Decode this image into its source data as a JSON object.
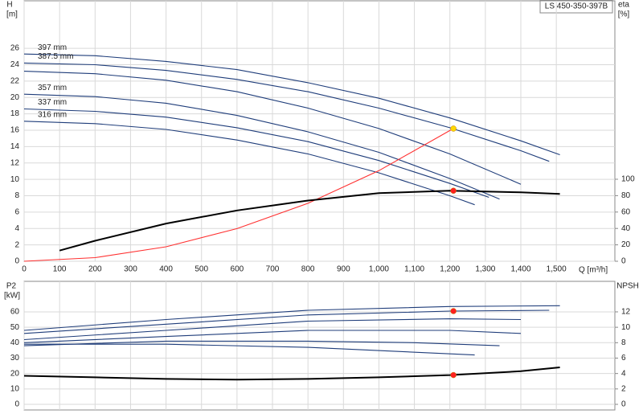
{
  "chart_data": [
    {
      "type": "line",
      "title": "LS 450-350-397B",
      "ylabel": "H",
      "yunit": "[m]",
      "y2label": "eta",
      "y2unit": "[%]",
      "xlabel": "Q [m³/h]",
      "xlim": [
        0,
        1665
      ],
      "xticks": [
        0,
        100,
        200,
        300,
        400,
        500,
        600,
        700,
        800,
        900,
        {
          "value": 1000,
          "label": "1,000"
        },
        {
          "value": 1100,
          "label": "1,100"
        },
        {
          "value": 1200,
          "label": "1,200"
        },
        {
          "value": 1300,
          "label": "1,300"
        },
        {
          "value": 1400,
          "label": "1,400"
        },
        {
          "value": 1500,
          "label": "1,500"
        }
      ],
      "ylim": [
        0,
        31.8
      ],
      "yticks": [
        0,
        2,
        4,
        6,
        8,
        10,
        12,
        14,
        16,
        18,
        20,
        22,
        24,
        26
      ],
      "y2lim": [
        0,
        317.6
      ],
      "y2ticks": [
        0,
        20,
        40,
        60,
        80,
        100
      ],
      "grid": true,
      "series": [
        {
          "name": "397 mm",
          "color": "#1f3d7a",
          "x": [
            0,
            200,
            400,
            600,
            800,
            1000,
            1200,
            1400,
            1510
          ],
          "values": [
            25.3,
            25.1,
            24.4,
            23.4,
            21.8,
            19.9,
            17.5,
            14.7,
            13.0
          ]
        },
        {
          "name": "387.5 mm",
          "color": "#1f3d7a",
          "x": [
            0,
            200,
            400,
            600,
            800,
            1000,
            1200,
            1400,
            1480
          ],
          "values": [
            24.2,
            24.0,
            23.3,
            22.2,
            20.7,
            18.7,
            16.3,
            13.5,
            12.2
          ]
        },
        {
          "color": "#1f3d7a",
          "x": [
            0,
            200,
            400,
            600,
            800,
            1000,
            1200,
            1400
          ],
          "values": [
            23.2,
            22.9,
            22.1,
            20.7,
            18.7,
            16.2,
            13.1,
            9.4
          ]
        },
        {
          "name": "357 mm",
          "color": "#1f3d7a",
          "x": [
            0,
            200,
            400,
            600,
            800,
            1000,
            1200,
            1340
          ],
          "values": [
            20.4,
            20.1,
            19.3,
            17.8,
            15.8,
            13.3,
            10.1,
            7.6
          ]
        },
        {
          "name": "337 mm",
          "color": "#1f3d7a",
          "x": [
            0,
            200,
            400,
            600,
            800,
            1000,
            1200,
            1310
          ],
          "values": [
            18.6,
            18.3,
            17.6,
            16.3,
            14.6,
            12.3,
            9.5,
            7.8
          ]
        },
        {
          "name": "316 mm",
          "color": "#1f3d7a",
          "x": [
            0,
            200,
            400,
            600,
            800,
            1000,
            1200,
            1270
          ],
          "values": [
            17.1,
            16.8,
            16.1,
            14.8,
            13.1,
            10.8,
            8.0,
            6.9
          ]
        },
        {
          "color": "#ff3030",
          "x": [
            0,
            200,
            400,
            600,
            800,
            1000,
            1210
          ],
          "values": [
            0,
            0.44,
            1.77,
            3.98,
            7.08,
            11.06,
            16.2
          ]
        },
        {
          "color": "#000000",
          "axis": "y2",
          "x": [
            100,
            200,
            400,
            600,
            800,
            1000,
            1200,
            1400,
            1510
          ],
          "values": [
            13,
            25,
            46,
            62,
            74,
            83,
            86,
            84,
            82
          ]
        }
      ],
      "markers": [
        {
          "x": 1210,
          "y": 16.2,
          "color": "#ffd700"
        },
        {
          "x": 1210,
          "y": 86,
          "axis": "y2",
          "color": "#ff2020"
        }
      ]
    },
    {
      "type": "line",
      "ylabel": "P2",
      "yunit": "[kW]",
      "y2label": "NPSH",
      "xlim": [
        0,
        1665
      ],
      "xticks": [
        0,
        100,
        200,
        300,
        400,
        500,
        600,
        700,
        800,
        900,
        1000,
        1100,
        1200,
        1300,
        1400,
        1500
      ],
      "ylim": [
        -3.65,
        79.8
      ],
      "yticks": [
        0,
        10,
        20,
        30,
        40,
        50,
        60
      ],
      "y2lim": [
        -0.73,
        15.96
      ],
      "y2ticks": [
        0,
        2,
        4,
        6,
        8,
        10,
        12
      ],
      "grid": true,
      "series": [
        {
          "color": "#1f3d7a",
          "x": [
            0,
            400,
            800,
            1200,
            1510
          ],
          "values": [
            48,
            55,
            61,
            63.5,
            64
          ]
        },
        {
          "color": "#1f3d7a",
          "x": [
            0,
            400,
            800,
            1200,
            1480
          ],
          "values": [
            46,
            52,
            58,
            60.5,
            61
          ]
        },
        {
          "color": "#1f3d7a",
          "x": [
            0,
            400,
            800,
            1200,
            1400
          ],
          "values": [
            42,
            48,
            54,
            55.5,
            55
          ]
        },
        {
          "color": "#1f3d7a",
          "x": [
            0,
            400,
            800,
            1200,
            1400
          ],
          "values": [
            40,
            44,
            48,
            48,
            46
          ]
        },
        {
          "color": "#1f3d7a",
          "x": [
            0,
            400,
            800,
            1100,
            1340
          ],
          "values": [
            38,
            41,
            41,
            40,
            38
          ]
        },
        {
          "color": "#1f3d7a",
          "x": [
            0,
            400,
            800,
            1270
          ],
          "values": [
            39,
            39,
            37,
            32
          ]
        },
        {
          "color": "#000000",
          "axis": "y2",
          "x": [
            0,
            200,
            400,
            600,
            800,
            1000,
            1200,
            1400,
            1510
          ],
          "values": [
            3.7,
            3.5,
            3.3,
            3.2,
            3.3,
            3.5,
            3.8,
            4.3,
            4.8
          ]
        }
      ],
      "markers": [
        {
          "x": 1210,
          "y": 60.5,
          "color": "#ff2020"
        },
        {
          "x": 1210,
          "y": 3.8,
          "axis": "y2",
          "color": "#ff2020"
        }
      ]
    }
  ]
}
